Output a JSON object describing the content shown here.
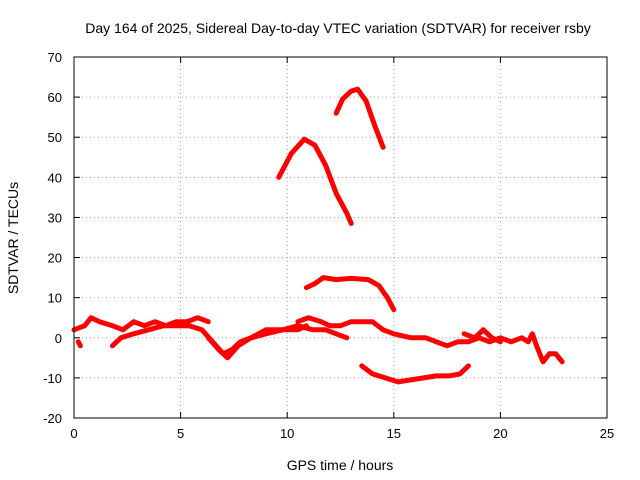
{
  "chart_data": {
    "type": "line",
    "title": "Day 164 of 2025, Sidereal Day-to-day VTEC variation (SDTVAR) for receiver rsby",
    "xlabel": "GPS time / hours",
    "ylabel": "SDTVAR / TECUs",
    "xlim": [
      0,
      25
    ],
    "ylim": [
      -20,
      70
    ],
    "xticks": [
      0,
      5,
      10,
      15,
      20,
      25
    ],
    "yticks": [
      -20,
      -10,
      0,
      10,
      20,
      30,
      40,
      50,
      60,
      70
    ],
    "grid": true,
    "series_color": "#ff0000",
    "series": [
      {
        "name": "trace-1",
        "points": [
          [
            0,
            2
          ],
          [
            0.5,
            3
          ],
          [
            0.8,
            5
          ],
          [
            1.2,
            4
          ],
          [
            1.8,
            3
          ],
          [
            2.3,
            2
          ],
          [
            2.8,
            4
          ],
          [
            3.3,
            3
          ],
          [
            3.8,
            4
          ],
          [
            4.3,
            3
          ],
          [
            4.8,
            4
          ],
          [
            5.3,
            4
          ],
          [
            5.8,
            5
          ],
          [
            6.3,
            4
          ]
        ]
      },
      {
        "name": "trace-2",
        "points": [
          [
            0.2,
            -1
          ],
          [
            0.3,
            -2
          ]
        ]
      },
      {
        "name": "trace-3",
        "points": [
          [
            1.8,
            -2
          ],
          [
            2.2,
            0
          ],
          [
            2.8,
            1
          ],
          [
            3.5,
            2
          ],
          [
            4.2,
            3
          ],
          [
            4.8,
            3
          ],
          [
            5.4,
            3
          ],
          [
            6,
            2
          ],
          [
            6.5,
            -1
          ],
          [
            7,
            -4
          ],
          [
            7.4,
            -3
          ],
          [
            7.8,
            -1
          ],
          [
            8.3,
            0
          ],
          [
            9,
            2
          ],
          [
            9.8,
            2
          ],
          [
            10.5,
            3
          ],
          [
            11.2,
            2
          ],
          [
            11.8,
            2
          ],
          [
            12.3,
            1
          ],
          [
            12.8,
            0
          ]
        ]
      },
      {
        "name": "trace-4",
        "points": [
          [
            6.3,
            0
          ],
          [
            6.8,
            -3
          ],
          [
            7.2,
            -5
          ],
          [
            7.7,
            -2
          ],
          [
            8.3,
            0
          ],
          [
            9,
            1
          ],
          [
            9.8,
            2
          ],
          [
            10.5,
            2
          ],
          [
            10.9,
            3
          ]
        ]
      },
      {
        "name": "trace-5",
        "points": [
          [
            10.5,
            4
          ],
          [
            11,
            5
          ],
          [
            11.6,
            4
          ],
          [
            12,
            3
          ],
          [
            12.5,
            3
          ],
          [
            13,
            4
          ],
          [
            13.5,
            4
          ],
          [
            14,
            4
          ],
          [
            14.5,
            2
          ],
          [
            15,
            1
          ],
          [
            15.8,
            0
          ],
          [
            16.5,
            0
          ],
          [
            17,
            -1
          ],
          [
            17.5,
            -2
          ],
          [
            18,
            -1
          ],
          [
            18.5,
            -1
          ],
          [
            19,
            0
          ],
          [
            19.5,
            -1
          ],
          [
            20,
            0
          ],
          [
            20.5,
            -1
          ],
          [
            21,
            0
          ],
          [
            21.3,
            -1
          ],
          [
            21.5,
            1
          ],
          [
            21.7,
            -2
          ],
          [
            22,
            -6
          ],
          [
            22.3,
            -4
          ],
          [
            22.6,
            -4
          ],
          [
            22.9,
            -6
          ]
        ]
      },
      {
        "name": "trace-6",
        "points": [
          [
            18.3,
            1
          ],
          [
            18.8,
            0
          ],
          [
            19.2,
            2
          ],
          [
            19.6,
            0
          ],
          [
            20,
            -1
          ]
        ]
      },
      {
        "name": "trace-7",
        "points": [
          [
            9.6,
            40
          ],
          [
            10.2,
            46
          ],
          [
            10.8,
            49.5
          ],
          [
            11.3,
            48
          ],
          [
            11.8,
            43
          ],
          [
            12.3,
            36
          ],
          [
            12.8,
            31
          ],
          [
            13,
            28.5
          ]
        ]
      },
      {
        "name": "trace-8",
        "points": [
          [
            12.3,
            56
          ],
          [
            12.6,
            59.5
          ],
          [
            13,
            61.5
          ],
          [
            13.3,
            62
          ],
          [
            13.7,
            59
          ],
          [
            14.1,
            53
          ],
          [
            14.5,
            47.5
          ]
        ]
      },
      {
        "name": "trace-9",
        "points": [
          [
            10.9,
            12.5
          ],
          [
            11.3,
            13.5
          ],
          [
            11.7,
            15
          ],
          [
            12.3,
            14.5
          ],
          [
            13,
            14.8
          ],
          [
            13.8,
            14.5
          ],
          [
            14.3,
            13
          ],
          [
            14.7,
            10
          ],
          [
            15,
            7
          ]
        ]
      },
      {
        "name": "trace-10",
        "points": [
          [
            13.5,
            -7
          ],
          [
            14,
            -9
          ],
          [
            14.6,
            -10
          ],
          [
            15.2,
            -11
          ],
          [
            15.8,
            -10.5
          ],
          [
            16.4,
            -10
          ],
          [
            17,
            -9.5
          ],
          [
            17.6,
            -9.5
          ],
          [
            18.1,
            -9
          ],
          [
            18.5,
            -7
          ]
        ]
      }
    ]
  }
}
